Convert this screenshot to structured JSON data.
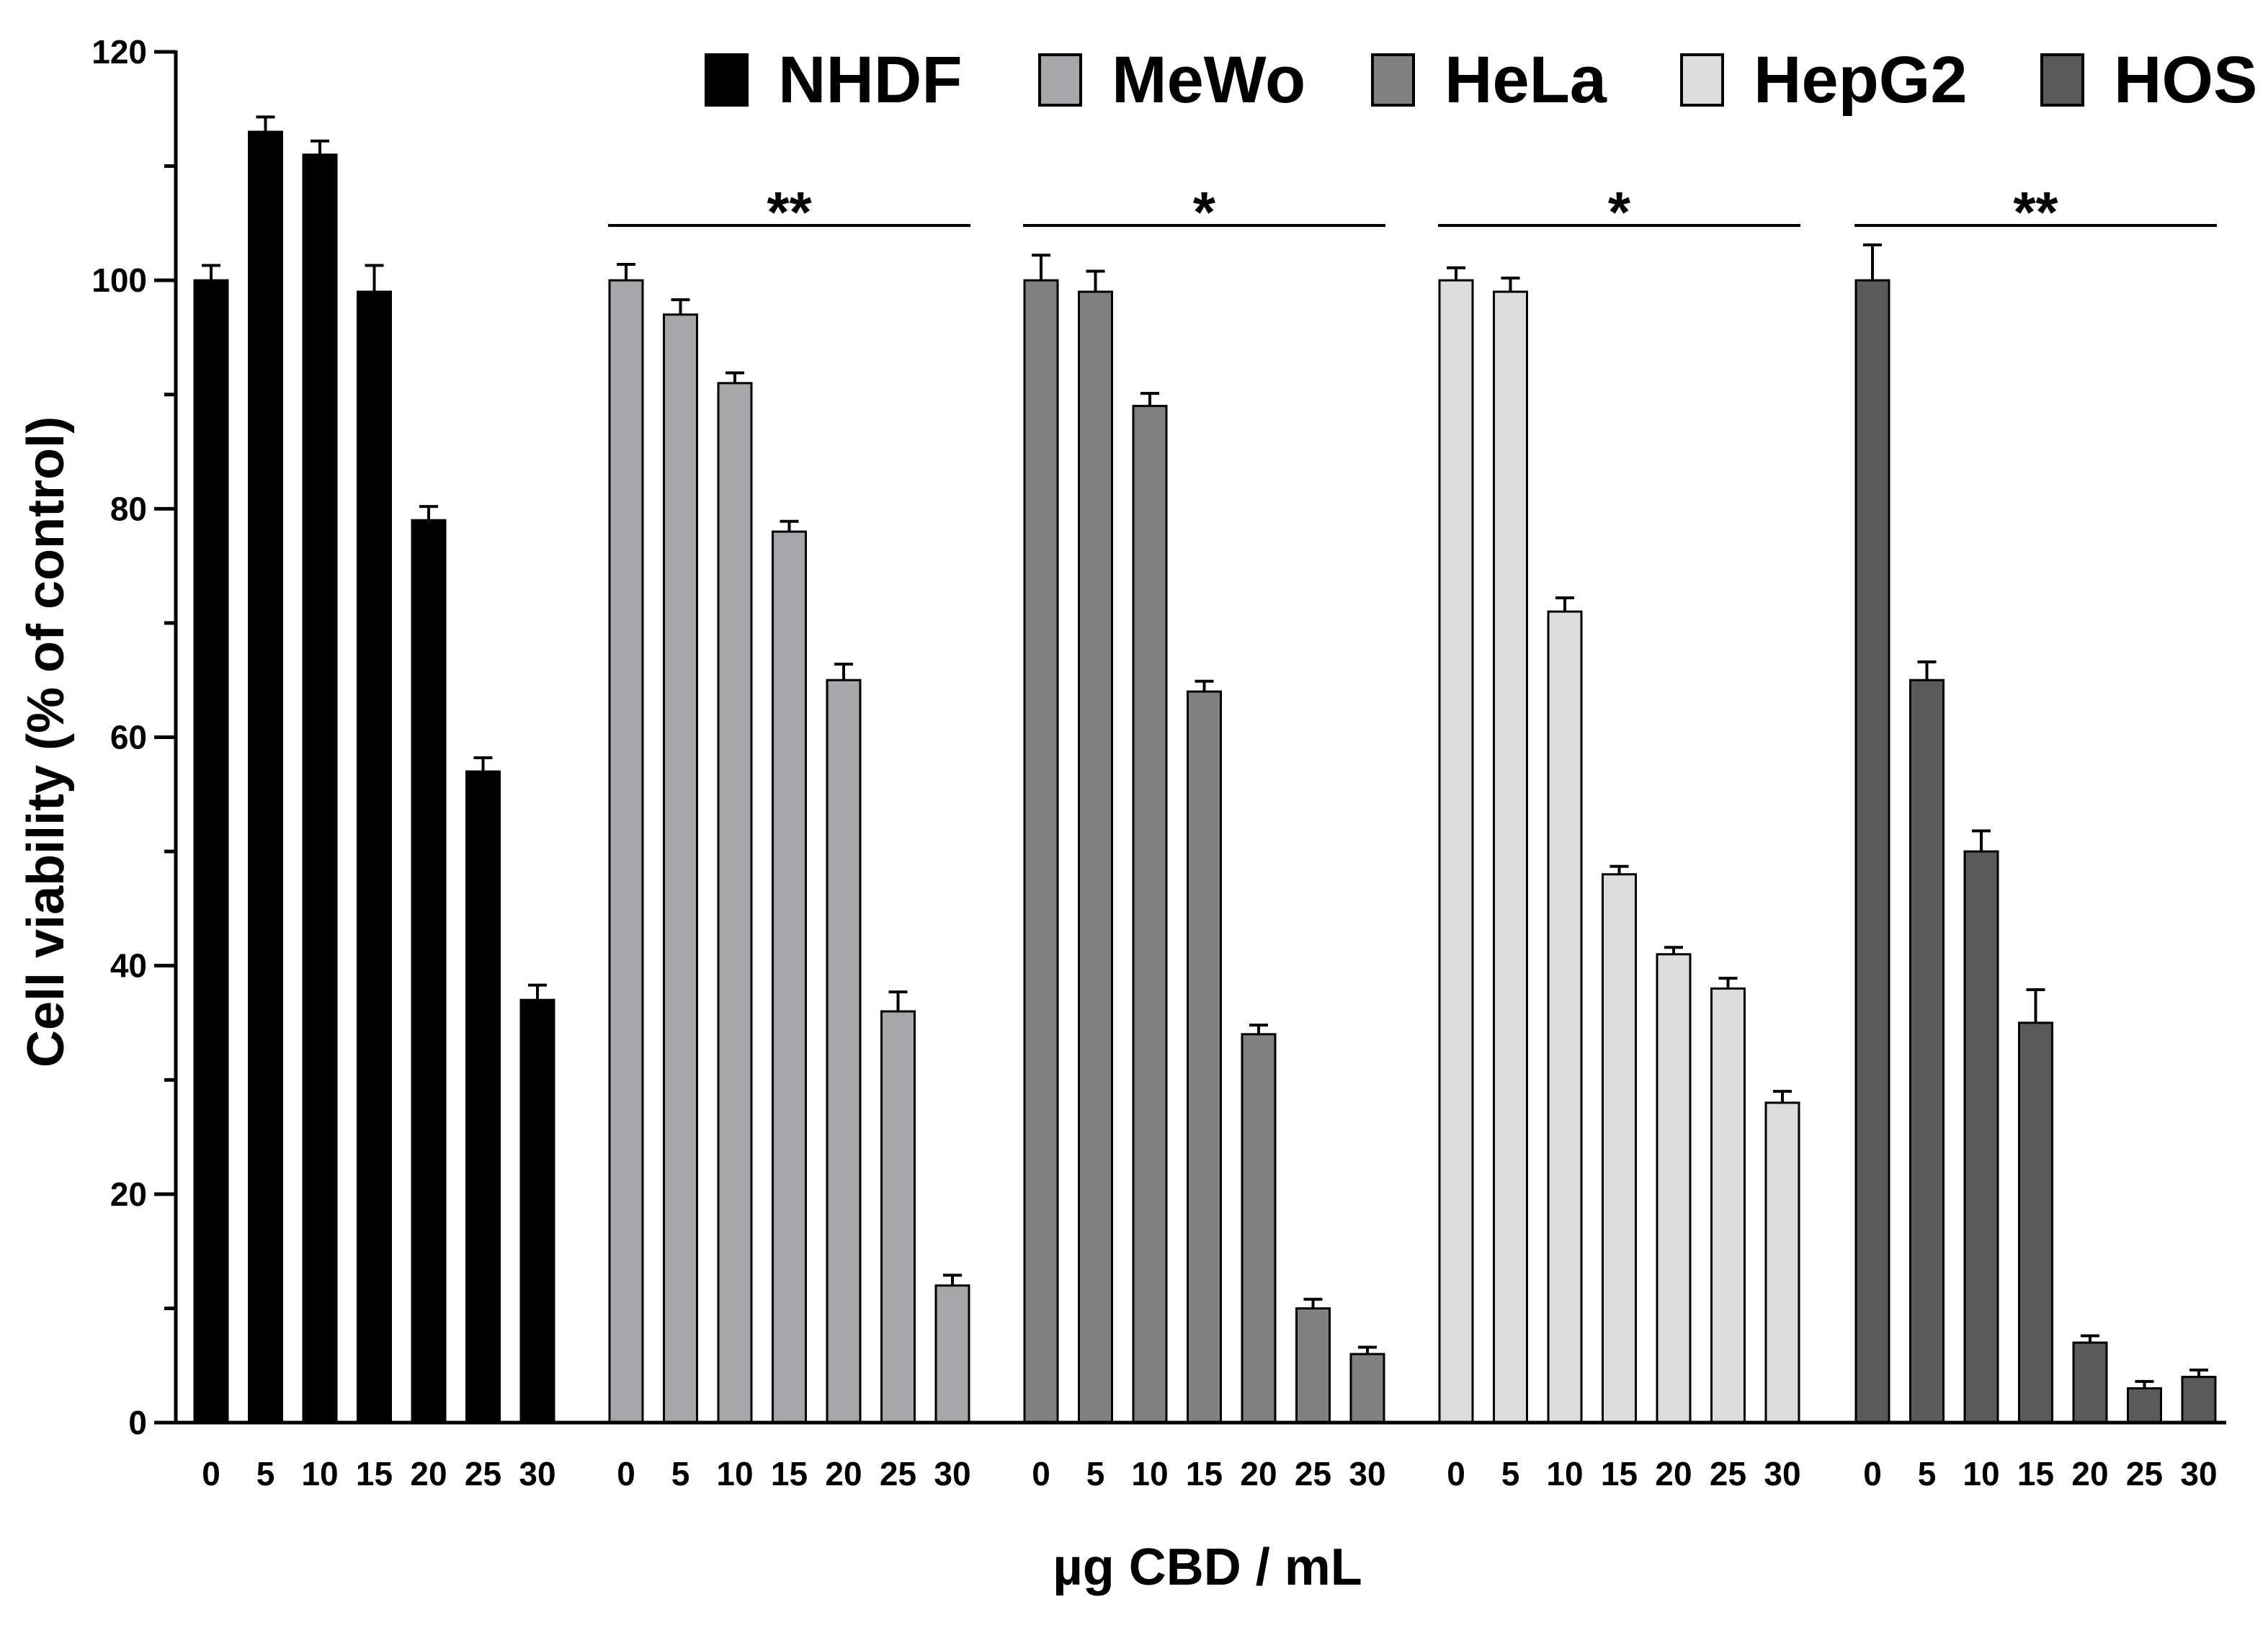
{
  "chart_data": {
    "type": "bar",
    "title": "",
    "xlabel": "µg CBD / mL",
    "ylabel": "Cell viability (% of control)",
    "ylim": [
      0,
      120
    ],
    "yticks": [
      0,
      20,
      40,
      60,
      80,
      100,
      120
    ],
    "categories": [
      "0",
      "5",
      "10",
      "15",
      "20",
      "25",
      "30"
    ],
    "legend_position": "top-right",
    "grid": false,
    "series": [
      {
        "name": "NHDF",
        "color": "#000000",
        "values": [
          100,
          113,
          111,
          99,
          79,
          57,
          37
        ],
        "errors": [
          1.3,
          1.3,
          1.2,
          2.3,
          1.2,
          1.2,
          1.3
        ],
        "significance": ""
      },
      {
        "name": "MeWo",
        "color": "#a6a6a9",
        "values": [
          100,
          97,
          91,
          78,
          65,
          36,
          12
        ],
        "errors": [
          1.4,
          1.3,
          0.9,
          0.9,
          1.4,
          1.7,
          0.9
        ],
        "significance": "**"
      },
      {
        "name": "HeLa",
        "color": "#808080",
        "values": [
          100,
          99,
          89,
          64,
          34,
          10,
          6
        ],
        "errors": [
          2.2,
          1.8,
          1.1,
          0.9,
          0.8,
          0.8,
          0.6
        ],
        "significance": "*"
      },
      {
        "name": "HepG2",
        "color": "#dcdcdc",
        "values": [
          100,
          99,
          71,
          48,
          41,
          38,
          28
        ],
        "errors": [
          1.1,
          1.2,
          1.2,
          0.7,
          0.6,
          0.9,
          1.0
        ],
        "significance": "*"
      },
      {
        "name": "HOS",
        "color": "#5a5a5a",
        "values": [
          100,
          65,
          50,
          35,
          7,
          3,
          4
        ],
        "errors": [
          3.1,
          1.6,
          1.8,
          2.9,
          0.6,
          0.6,
          0.6
        ],
        "significance": "**"
      }
    ]
  }
}
